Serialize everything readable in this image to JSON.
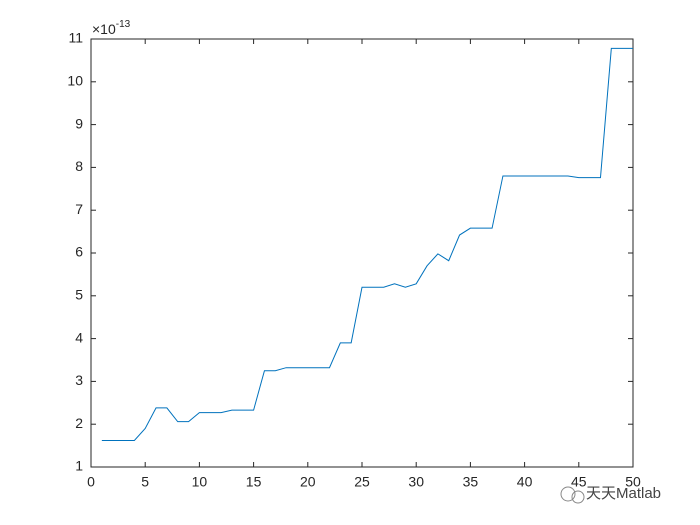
{
  "chart_data": {
    "type": "line",
    "y_exponent": {
      "base": "×10",
      "power": "-13"
    },
    "x": [
      1,
      2,
      3,
      4,
      5,
      6,
      7,
      8,
      9,
      10,
      11,
      12,
      13,
      14,
      15,
      16,
      17,
      18,
      19,
      20,
      21,
      22,
      23,
      24,
      25,
      26,
      27,
      28,
      29,
      30,
      31,
      32,
      33,
      34,
      35,
      36,
      37,
      38,
      39,
      40,
      41,
      42,
      43,
      44,
      45,
      46,
      47,
      48,
      49,
      50
    ],
    "values": [
      1.62,
      1.62,
      1.62,
      1.62,
      1.9,
      2.38,
      2.38,
      2.06,
      2.06,
      2.27,
      2.27,
      2.27,
      2.33,
      2.33,
      2.33,
      3.25,
      3.25,
      3.32,
      3.32,
      3.32,
      3.32,
      3.32,
      3.9,
      3.9,
      5.2,
      5.2,
      5.2,
      5.28,
      5.2,
      5.28,
      5.7,
      5.98,
      5.82,
      6.42,
      6.58,
      6.58,
      6.58,
      7.8,
      7.8,
      7.8,
      7.8,
      7.8,
      7.8,
      7.8,
      7.76,
      7.76,
      7.76,
      10.78,
      10.78,
      10.78
    ],
    "color": "#0072bd",
    "xlim": [
      0,
      50
    ],
    "xticks": [
      0,
      5,
      10,
      15,
      20,
      25,
      30,
      35,
      40,
      45,
      50
    ],
    "ylim": [
      1,
      11
    ],
    "yticks": [
      1,
      2,
      3,
      4,
      5,
      6,
      7,
      8,
      9,
      10,
      11
    ],
    "grid": false,
    "watermark": "天天Matlab"
  }
}
